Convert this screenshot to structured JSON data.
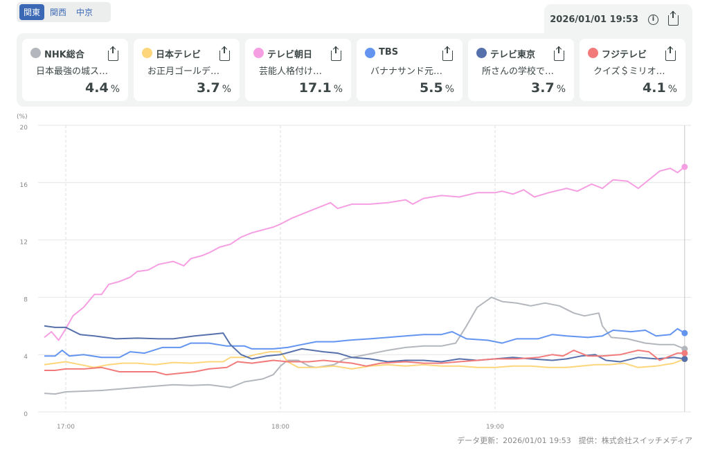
{
  "tabs": [
    "関東",
    "関西",
    "中京"
  ],
  "active_tab": 0,
  "header": {
    "timestamp": "2026/01/01 19:53"
  },
  "channels": [
    {
      "name": "NHK総合",
      "program": "日本最強の城ス…",
      "rating": "4.4",
      "unit": "%",
      "color": "#b3b7bd"
    },
    {
      "name": "日本テレビ",
      "program": "お正月ゴールデ…",
      "rating": "3.7",
      "unit": "%",
      "color": "#fdd57a"
    },
    {
      "name": "テレビ朝日",
      "program": "芸能人格付け…",
      "rating": "17.1",
      "unit": "%",
      "color": "#f59ee2"
    },
    {
      "name": "TBS",
      "program": "バナナサンド元…",
      "rating": "5.5",
      "unit": "%",
      "color": "#6294f0"
    },
    {
      "name": "テレビ東京",
      "program": "所さんの学校で…",
      "rating": "3.7",
      "unit": "%",
      "color": "#5670ac"
    },
    {
      "name": "フジテレビ",
      "program": "クイズ＄ミリオ…",
      "rating": "4.1",
      "unit": "%",
      "color": "#f27a7a"
    }
  ],
  "footer": "データ更新：2026/01/01 19:53　提供：株式会社スイッチメディア",
  "chart_data": {
    "type": "line",
    "ylabel": "(%)",
    "ylim": [
      0,
      20
    ],
    "yticks": [
      "0",
      "4",
      "8",
      "12",
      "16",
      "20"
    ],
    "xlim_minutes_from_1700": [
      -6,
      173
    ],
    "xticks": [
      {
        "label": "17:00",
        "minute": 0
      },
      {
        "label": "18:00",
        "minute": 60
      },
      {
        "label": "19:00",
        "minute": 120
      }
    ],
    "grid": true,
    "series": [
      {
        "name": "NHK総合",
        "points": [
          [
            -6,
            1.3
          ],
          [
            -3,
            1.25
          ],
          [
            0,
            1.4
          ],
          [
            5,
            1.45
          ],
          [
            10,
            1.5
          ],
          [
            15,
            1.6
          ],
          [
            20,
            1.7
          ],
          [
            25,
            1.8
          ],
          [
            30,
            1.9
          ],
          [
            35,
            1.85
          ],
          [
            40,
            1.9
          ],
          [
            43,
            1.8
          ],
          [
            46,
            1.7
          ],
          [
            50,
            2.1
          ],
          [
            55,
            2.3
          ],
          [
            58,
            2.6
          ],
          [
            60,
            3.2
          ],
          [
            62,
            3.6
          ],
          [
            65,
            3.6
          ],
          [
            68,
            3.2
          ],
          [
            70,
            3.1
          ],
          [
            75,
            3.3
          ],
          [
            78,
            3.7
          ],
          [
            82,
            3.9
          ],
          [
            86,
            4.1
          ],
          [
            90,
            4.3
          ],
          [
            95,
            4.5
          ],
          [
            100,
            4.6
          ],
          [
            105,
            4.6
          ],
          [
            109,
            4.8
          ],
          [
            112,
            6.0
          ],
          [
            115,
            7.3
          ],
          [
            119,
            8.0
          ],
          [
            122,
            7.7
          ],
          [
            126,
            7.6
          ],
          [
            130,
            7.4
          ],
          [
            134,
            7.6
          ],
          [
            138,
            7.4
          ],
          [
            142,
            6.9
          ],
          [
            145,
            6.7
          ],
          [
            149,
            6.9
          ],
          [
            150,
            6.0
          ],
          [
            152.5,
            5.2
          ],
          [
            157,
            5.1
          ],
          [
            162,
            4.8
          ],
          [
            166,
            4.7
          ],
          [
            170,
            4.7
          ],
          [
            173,
            4.4
          ]
        ]
      },
      {
        "name": "日本テレビ",
        "points": [
          [
            -6,
            3.3
          ],
          [
            -3,
            3.4
          ],
          [
            0,
            3.5
          ],
          [
            4,
            3.3
          ],
          [
            8,
            3.1
          ],
          [
            12,
            3.3
          ],
          [
            16,
            3.4
          ],
          [
            20,
            3.4
          ],
          [
            25,
            3.3
          ],
          [
            30,
            3.45
          ],
          [
            35,
            3.4
          ],
          [
            40,
            3.5
          ],
          [
            44,
            3.5
          ],
          [
            46,
            3.8
          ],
          [
            50,
            3.8
          ],
          [
            53,
            4.0
          ],
          [
            57,
            4.2
          ],
          [
            60,
            4.2
          ],
          [
            62,
            3.5
          ],
          [
            65,
            3.1
          ],
          [
            70,
            3.1
          ],
          [
            75,
            3.2
          ],
          [
            80,
            3.0
          ],
          [
            85,
            3.2
          ],
          [
            90,
            3.3
          ],
          [
            95,
            3.2
          ],
          [
            100,
            3.3
          ],
          [
            105,
            3.2
          ],
          [
            110,
            3.2
          ],
          [
            115,
            3.1
          ],
          [
            120,
            3.1
          ],
          [
            125,
            3.2
          ],
          [
            130,
            3.2
          ],
          [
            135,
            3.1
          ],
          [
            140,
            3.1
          ],
          [
            144,
            3.2
          ],
          [
            148,
            3.3
          ],
          [
            152,
            3.3
          ],
          [
            156,
            3.4
          ],
          [
            160,
            3.1
          ],
          [
            165,
            3.2
          ],
          [
            170,
            3.4
          ],
          [
            173,
            3.7
          ]
        ]
      },
      {
        "name": "テレビ朝日",
        "points": [
          [
            -6,
            5.2
          ],
          [
            -4,
            5.6
          ],
          [
            -2,
            5.0
          ],
          [
            0,
            5.8
          ],
          [
            2,
            6.7
          ],
          [
            5,
            7.3
          ],
          [
            8,
            8.2
          ],
          [
            10,
            8.2
          ],
          [
            12,
            8.9
          ],
          [
            15,
            9.1
          ],
          [
            18,
            9.4
          ],
          [
            20,
            9.8
          ],
          [
            23,
            9.9
          ],
          [
            26,
            10.3
          ],
          [
            28,
            10.4
          ],
          [
            30,
            10.5
          ],
          [
            33,
            10.2
          ],
          [
            35,
            10.7
          ],
          [
            38,
            10.9
          ],
          [
            40,
            11.1
          ],
          [
            43,
            11.5
          ],
          [
            46,
            11.7
          ],
          [
            49,
            12.2
          ],
          [
            52,
            12.5
          ],
          [
            55,
            12.7
          ],
          [
            58,
            12.9
          ],
          [
            60,
            13.1
          ],
          [
            63,
            13.5
          ],
          [
            66,
            13.8
          ],
          [
            69,
            14.1
          ],
          [
            72,
            14.4
          ],
          [
            74,
            14.6
          ],
          [
            76,
            14.2
          ],
          [
            80,
            14.5
          ],
          [
            85,
            14.5
          ],
          [
            90,
            14.6
          ],
          [
            95,
            14.8
          ],
          [
            97,
            14.5
          ],
          [
            100,
            14.9
          ],
          [
            105,
            15.1
          ],
          [
            110,
            15.0
          ],
          [
            115,
            15.3
          ],
          [
            120,
            15.3
          ],
          [
            122,
            15.4
          ],
          [
            125,
            15.2
          ],
          [
            128,
            15.5
          ],
          [
            131,
            15.0
          ],
          [
            135,
            15.3
          ],
          [
            140,
            15.6
          ],
          [
            143,
            15.4
          ],
          [
            147,
            15.9
          ],
          [
            150,
            15.6
          ],
          [
            153,
            16.2
          ],
          [
            157,
            16.1
          ],
          [
            160,
            15.6
          ],
          [
            163,
            16.2
          ],
          [
            166,
            16.8
          ],
          [
            169,
            17.0
          ],
          [
            171,
            16.7
          ],
          [
            173,
            17.1
          ]
        ]
      },
      {
        "name": "TBS",
        "points": [
          [
            -6,
            3.9
          ],
          [
            -3,
            3.9
          ],
          [
            -1,
            4.3
          ],
          [
            1,
            3.9
          ],
          [
            5,
            4.0
          ],
          [
            10,
            3.8
          ],
          [
            15,
            3.8
          ],
          [
            18,
            4.2
          ],
          [
            22,
            4.1
          ],
          [
            27,
            4.5
          ],
          [
            32,
            4.5
          ],
          [
            35,
            4.8
          ],
          [
            40,
            4.8
          ],
          [
            45,
            4.6
          ],
          [
            50,
            4.6
          ],
          [
            52,
            4.4
          ],
          [
            58,
            4.4
          ],
          [
            62,
            4.5
          ],
          [
            66,
            4.7
          ],
          [
            70,
            4.9
          ],
          [
            75,
            4.9
          ],
          [
            79,
            5.0
          ],
          [
            85,
            5.1
          ],
          [
            90,
            5.2
          ],
          [
            95,
            5.3
          ],
          [
            100,
            5.4
          ],
          [
            105,
            5.4
          ],
          [
            108,
            5.6
          ],
          [
            112,
            5.1
          ],
          [
            118,
            5.0
          ],
          [
            122,
            4.8
          ],
          [
            126,
            5.1
          ],
          [
            132,
            5.1
          ],
          [
            136,
            5.4
          ],
          [
            140,
            5.3
          ],
          [
            146,
            5.2
          ],
          [
            150,
            5.3
          ],
          [
            153,
            5.7
          ],
          [
            158,
            5.6
          ],
          [
            162,
            5.7
          ],
          [
            165,
            5.3
          ],
          [
            169,
            5.4
          ],
          [
            171,
            5.8
          ],
          [
            173,
            5.5
          ]
        ]
      },
      {
        "name": "テレビ東京",
        "points": [
          [
            -6,
            6.0
          ],
          [
            -3,
            5.9
          ],
          [
            0,
            5.9
          ],
          [
            4,
            5.4
          ],
          [
            8,
            5.3
          ],
          [
            14,
            5.1
          ],
          [
            20,
            5.15
          ],
          [
            26,
            5.1
          ],
          [
            30,
            5.1
          ],
          [
            36,
            5.3
          ],
          [
            40,
            5.4
          ],
          [
            44,
            5.5
          ],
          [
            46,
            4.7
          ],
          [
            49,
            4.0
          ],
          [
            52,
            3.7
          ],
          [
            56,
            3.9
          ],
          [
            60,
            4.0
          ],
          [
            63,
            4.2
          ],
          [
            66,
            4.4
          ],
          [
            72,
            4.2
          ],
          [
            76,
            4.1
          ],
          [
            80,
            3.8
          ],
          [
            85,
            3.7
          ],
          [
            90,
            3.5
          ],
          [
            95,
            3.6
          ],
          [
            100,
            3.6
          ],
          [
            105,
            3.5
          ],
          [
            110,
            3.7
          ],
          [
            115,
            3.6
          ],
          [
            120,
            3.7
          ],
          [
            125,
            3.8
          ],
          [
            130,
            3.7
          ],
          [
            136,
            3.6
          ],
          [
            140,
            3.7
          ],
          [
            144,
            3.9
          ],
          [
            148,
            4.0
          ],
          [
            151,
            3.6
          ],
          [
            155,
            3.5
          ],
          [
            160,
            3.8
          ],
          [
            165,
            3.7
          ],
          [
            170,
            3.8
          ],
          [
            173,
            3.7
          ]
        ]
      },
      {
        "name": "フジテレビ",
        "points": [
          [
            -6,
            2.9
          ],
          [
            -3,
            2.9
          ],
          [
            0,
            3.0
          ],
          [
            5,
            3.0
          ],
          [
            10,
            3.1
          ],
          [
            15,
            2.8
          ],
          [
            20,
            2.8
          ],
          [
            25,
            2.8
          ],
          [
            28,
            2.6
          ],
          [
            32,
            2.7
          ],
          [
            36,
            2.8
          ],
          [
            40,
            3.0
          ],
          [
            45,
            3.1
          ],
          [
            48,
            3.5
          ],
          [
            52,
            3.4
          ],
          [
            58,
            3.6
          ],
          [
            62,
            3.5
          ],
          [
            68,
            3.5
          ],
          [
            72,
            3.6
          ],
          [
            76,
            3.5
          ],
          [
            80,
            3.4
          ],
          [
            84,
            3.2
          ],
          [
            88,
            3.4
          ],
          [
            95,
            3.5
          ],
          [
            100,
            3.4
          ],
          [
            105,
            3.4
          ],
          [
            110,
            3.5
          ],
          [
            115,
            3.6
          ],
          [
            120,
            3.7
          ],
          [
            126,
            3.7
          ],
          [
            132,
            3.8
          ],
          [
            136,
            4.0
          ],
          [
            139,
            3.9
          ],
          [
            142,
            4.3
          ],
          [
            146,
            3.9
          ],
          [
            150,
            3.9
          ],
          [
            155,
            4.0
          ],
          [
            160,
            4.3
          ],
          [
            163,
            4.2
          ],
          [
            166,
            3.6
          ],
          [
            168,
            3.8
          ],
          [
            171,
            4.1
          ],
          [
            173,
            4.1
          ]
        ]
      }
    ]
  }
}
